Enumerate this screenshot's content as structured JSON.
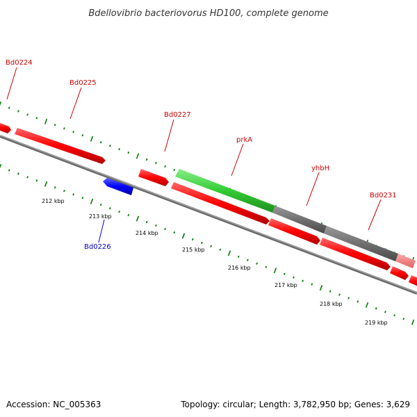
{
  "title": "Bdellovibrio bacteriovorus HD100, complete genome",
  "footer": {
    "accession": "Accession: NC_005363",
    "summary": "Topology: circular; Length: 3,782,950 bp; Genes: 3,629"
  },
  "scale_labels": [
    "212 kbp",
    "213 kbp",
    "214 kbp",
    "215 kbp",
    "216 kbp",
    "217 kbp",
    "218 kbp",
    "219 kbp"
  ],
  "gene_labels": {
    "bd0224": "Bd0224",
    "bd0225": "Bd0225",
    "bd0226": "Bd0226",
    "bd0227": "Bd0227",
    "prka": "prkA",
    "yhbh": "yhbH",
    "bd0231": "Bd0231"
  },
  "colors": {
    "gene_forward": "#ff0000",
    "gene_reverse": "#0000ff",
    "highlight": "#33cc33",
    "other": "#707070",
    "tick": "#007a00",
    "backbone": "#808080",
    "label_red": "#cc0000",
    "label_blue": "#0000cc"
  }
}
